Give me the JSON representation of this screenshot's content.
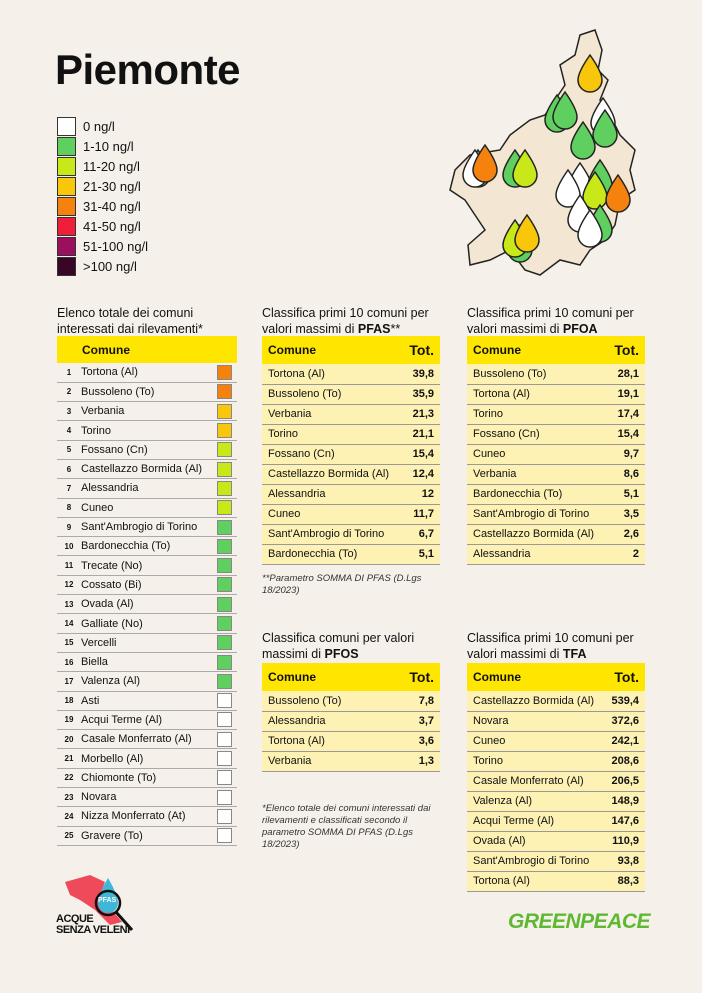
{
  "title": "Piemonte",
  "legend": [
    {
      "label": "0 ng/l",
      "color": "#ffffff"
    },
    {
      "label": "1-10 ng/l",
      "color": "#5fcf5f"
    },
    {
      "label": "11-20 ng/l",
      "color": "#c8e81a"
    },
    {
      "label": "21-30 ng/l",
      "color": "#f8c60a"
    },
    {
      "label": "31-40 ng/l",
      "color": "#f5820f"
    },
    {
      "label": "41-50 ng/l",
      "color": "#ef1f3a"
    },
    {
      "label": "51-100 ng/l",
      "color": "#9b0f5e"
    },
    {
      "label": ">100 ng/l",
      "color": "#3a0628"
    }
  ],
  "list": {
    "heading": "Elenco totale dei comuni interessati dai rilevamenti*",
    "header": "Comune",
    "rows": [
      {
        "n": "1",
        "name": "Tortona (Al)",
        "color": "#f5820f"
      },
      {
        "n": "2",
        "name": "Bussoleno (To)",
        "color": "#f5820f"
      },
      {
        "n": "3",
        "name": "Verbania",
        "color": "#f8c60a"
      },
      {
        "n": "4",
        "name": "Torino",
        "color": "#f8c60a"
      },
      {
        "n": "5",
        "name": "Fossano (Cn)",
        "color": "#c8e81a"
      },
      {
        "n": "6",
        "name": "Castellazzo Bormida (Al)",
        "color": "#c8e81a"
      },
      {
        "n": "7",
        "name": "Alessandria",
        "color": "#c8e81a"
      },
      {
        "n": "8",
        "name": "Cuneo",
        "color": "#c8e81a"
      },
      {
        "n": "9",
        "name": "Sant'Ambrogio di Torino",
        "color": "#5fcf5f"
      },
      {
        "n": "10",
        "name": "Bardonecchia (To)",
        "color": "#5fcf5f"
      },
      {
        "n": "11",
        "name": "Trecate (No)",
        "color": "#5fcf5f"
      },
      {
        "n": "12",
        "name": "Cossato (Bi)",
        "color": "#5fcf5f"
      },
      {
        "n": "13",
        "name": "Ovada (Al)",
        "color": "#5fcf5f"
      },
      {
        "n": "14",
        "name": "Galliate (No)",
        "color": "#5fcf5f"
      },
      {
        "n": "15",
        "name": "Vercelli",
        "color": "#5fcf5f"
      },
      {
        "n": "16",
        "name": "Biella",
        "color": "#5fcf5f"
      },
      {
        "n": "17",
        "name": "Valenza (Al)",
        "color": "#5fcf5f"
      },
      {
        "n": "18",
        "name": "Asti",
        "color": "#ffffff"
      },
      {
        "n": "19",
        "name": "Acqui Terme (Al)",
        "color": "#ffffff"
      },
      {
        "n": "20",
        "name": "Casale Monferrato (Al)",
        "color": "#ffffff"
      },
      {
        "n": "21",
        "name": "Morbello (Al)",
        "color": "#ffffff"
      },
      {
        "n": "22",
        "name": "Chiomonte (To)",
        "color": "#ffffff"
      },
      {
        "n": "23",
        "name": "Novara",
        "color": "#ffffff"
      },
      {
        "n": "24",
        "name": "Nizza Monferrato (At)",
        "color": "#ffffff"
      },
      {
        "n": "25",
        "name": "Gravere (To)",
        "color": "#ffffff"
      }
    ]
  },
  "tables": [
    {
      "heading_pre": "Classifica primi 10 comuni per valori massimi di ",
      "heading_bold": "PFAS",
      "heading_post": "**",
      "col1": "Comune",
      "col2": "Tot.",
      "rows": [
        [
          "Tortona (Al)",
          "39,8"
        ],
        [
          "Bussoleno (To)",
          "35,9"
        ],
        [
          "Verbania",
          "21,3"
        ],
        [
          "Torino",
          "21,1"
        ],
        [
          "Fossano (Cn)",
          "15,4"
        ],
        [
          "Castellazzo Bormida (Al)",
          "12,4"
        ],
        [
          "Alessandria",
          "12"
        ],
        [
          "Cuneo",
          "11,7"
        ],
        [
          "Sant'Ambrogio di Torino",
          "6,7"
        ],
        [
          "Bardonecchia (To)",
          "5,1"
        ]
      ]
    },
    {
      "heading_pre": "Classifica primi 10 comuni per valori massimi di ",
      "heading_bold": "PFOA",
      "heading_post": "",
      "col1": "Comune",
      "col2": "Tot.",
      "rows": [
        [
          "Bussoleno (To)",
          "28,1"
        ],
        [
          "Tortona (Al)",
          "19,1"
        ],
        [
          "Torino",
          "17,4"
        ],
        [
          "Fossano (Cn)",
          "15,4"
        ],
        [
          "Cuneo",
          "9,7"
        ],
        [
          "Verbania",
          "8,6"
        ],
        [
          "Bardonecchia (To)",
          "5,1"
        ],
        [
          "Sant'Ambrogio di Torino",
          "3,5"
        ],
        [
          "Castellazzo Bormida (Al)",
          "2,6"
        ],
        [
          "Alessandria",
          "2"
        ]
      ]
    },
    {
      "heading_pre": "Classifica comuni per valori massimi di ",
      "heading_bold": "PFOS",
      "heading_post": "",
      "col1": "Comune",
      "col2": "Tot.",
      "rows": [
        [
          "Bussoleno (To)",
          "7,8"
        ],
        [
          "Alessandria",
          "3,7"
        ],
        [
          "Tortona (Al)",
          "3,6"
        ],
        [
          "Verbania",
          "1,3"
        ]
      ]
    },
    {
      "heading_pre": "Classifica primi 10 comuni per valori massimi di ",
      "heading_bold": "TFA",
      "heading_post": "",
      "col1": "Comune",
      "col2": "Tot.",
      "rows": [
        [
          "Castellazzo Bormida (Al)",
          "539,4"
        ],
        [
          "Novara",
          "372,6"
        ],
        [
          "Cuneo",
          "242,1"
        ],
        [
          "Torino",
          "208,6"
        ],
        [
          "Casale Monferrato (Al)",
          "206,5"
        ],
        [
          "Valenza (Al)",
          "148,9"
        ],
        [
          "Acqui Terme (Al)",
          "147,6"
        ],
        [
          "Ovada (Al)",
          "110,9"
        ],
        [
          "Sant'Ambrogio di Torino",
          "93,8"
        ],
        [
          "Tortona (Al)",
          "88,3"
        ]
      ]
    }
  ],
  "note_pfas": "**Parametro SOMMA DI PFAS (D.Lgs 18/2023)",
  "note_list": "*Elenco totale dei comuni interessati dai rilevamenti e classificati secondo il parametro SOMMA DI PFAS (D.Lgs 18/2023)",
  "logo_left": {
    "line1": "ACQUE",
    "line2": "SENZA VELENI",
    "badge": "PFAS"
  },
  "logo_right": "GREENPEACE",
  "map_drops": [
    "#f8c60a",
    "#5fcf5f",
    "#5fcf5f",
    "#ffffff",
    "#5fcf5f",
    "#5fcf5f",
    "#5fcf5f",
    "#ffffff",
    "#f5820f",
    "#5fcf5f",
    "#ffffff",
    "#c8e81a",
    "#5fcf5f",
    "#ffffff",
    "#c8e81a",
    "#f5820f",
    "#ffffff",
    "#5fcf5f",
    "#ffffff",
    "#5fcf5f",
    "#c8e81a",
    "#f8c60a"
  ]
}
